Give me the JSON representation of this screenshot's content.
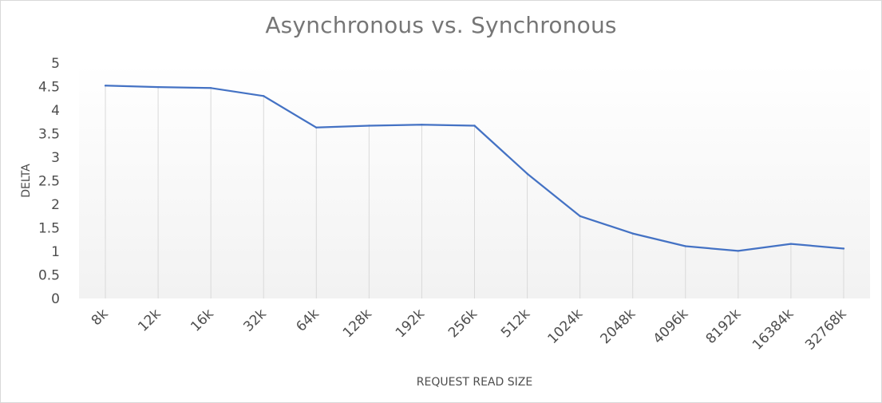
{
  "chart_data": {
    "type": "line",
    "title": "Asynchronous  vs. Synchronous",
    "xlabel": "REQUEST READ SIZE",
    "ylabel": "DELTA",
    "categories": [
      "8k",
      "12k",
      "16k",
      "32k",
      "64k",
      "128k",
      "192k",
      "256k",
      "512k",
      "1024k",
      "2048k",
      "4096k",
      "8192k",
      "16384k",
      "32768k"
    ],
    "series": [
      {
        "values": [
          4.52,
          4.49,
          4.47,
          4.3,
          3.63,
          3.67,
          3.69,
          3.67,
          2.65,
          1.75,
          1.38,
          1.11,
          1.01,
          1.16,
          1.06
        ]
      }
    ],
    "ylim": [
      0,
      5
    ],
    "yticks": [
      "0",
      "0.5",
      "1",
      "1.5",
      "2",
      "2.5",
      "3",
      "3.5",
      "4",
      "4.5",
      "5"
    ],
    "grid": "vertical",
    "legend": "none",
    "colors": {
      "line": "#4472c4",
      "grid": "#d9d9d9",
      "background_gradient_end": "#f2f2f2"
    }
  }
}
